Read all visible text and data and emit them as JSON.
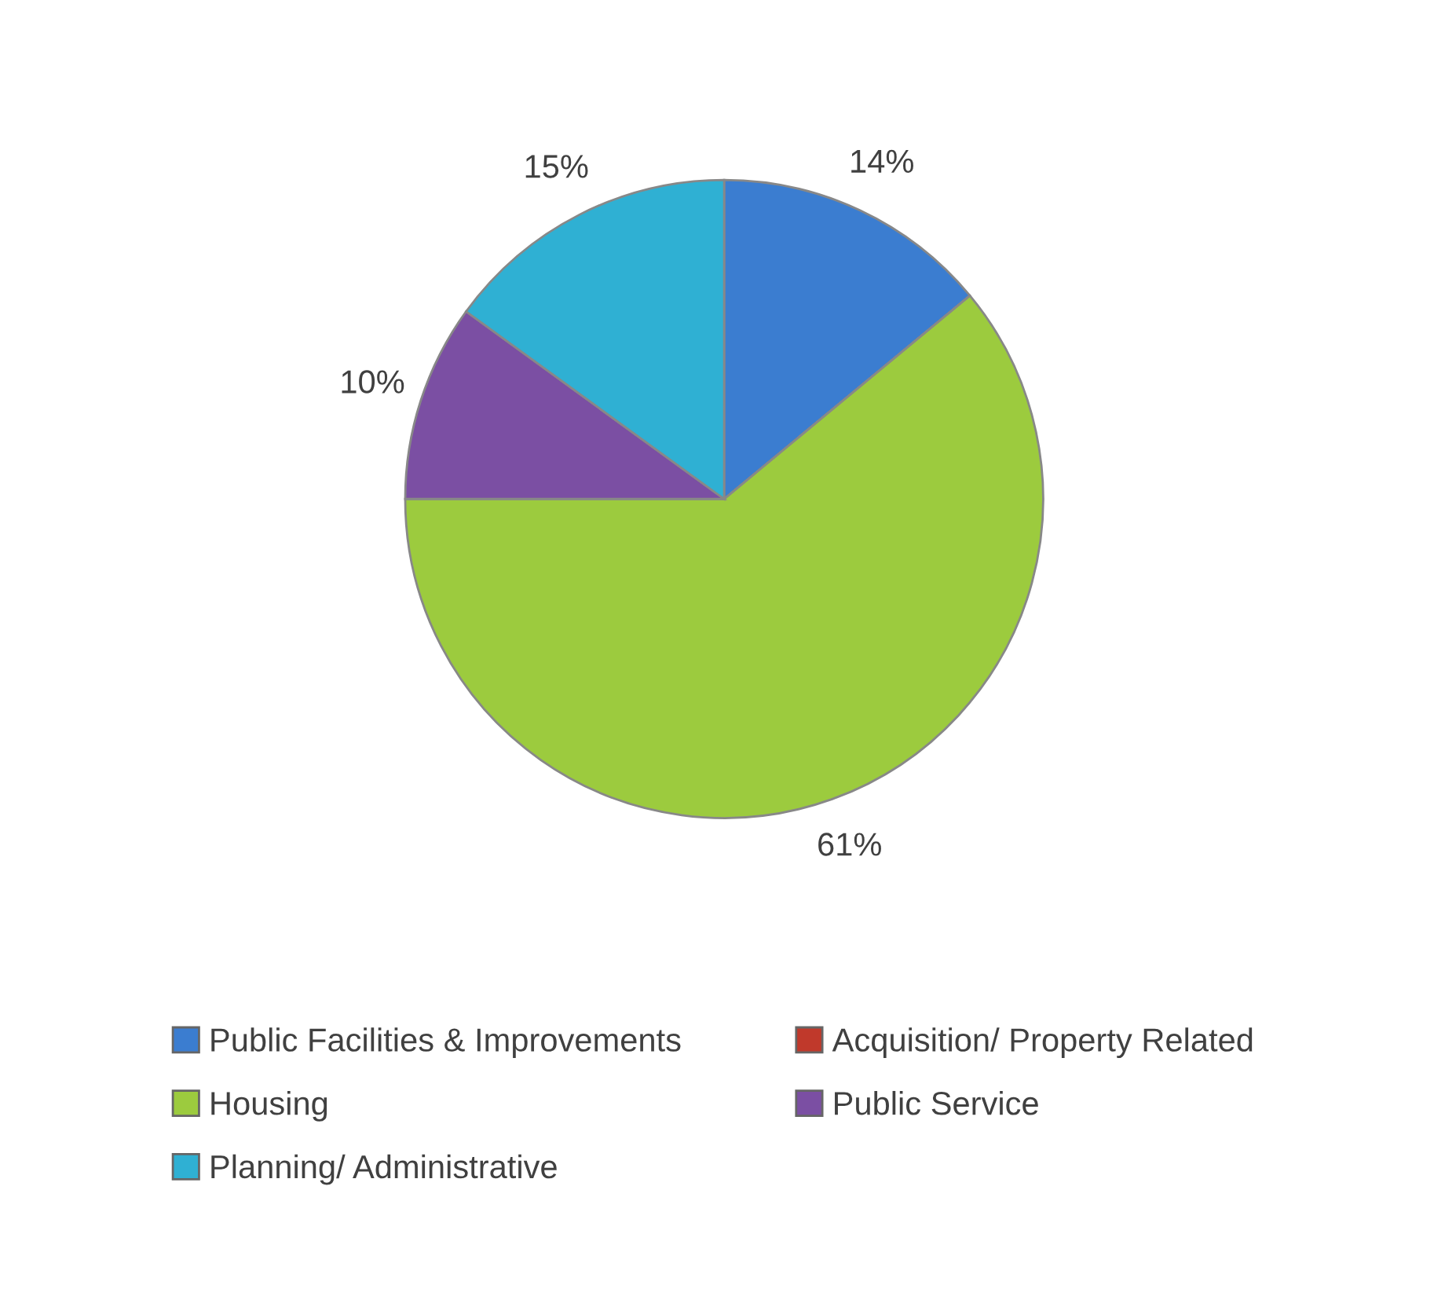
{
  "chart_data": {
    "type": "pie",
    "categories": [
      "Public Facilities & Improvements",
      "Acquisition/ Property Related",
      "Housing",
      "Public Service",
      "Planning/ Administrative"
    ],
    "values": [
      14,
      0,
      61,
      10,
      15
    ],
    "colors": [
      "#3b7dd0",
      "#c0392b",
      "#9ccb3e",
      "#7b4fa3",
      "#2fb0d3"
    ],
    "value_labels": [
      "14%",
      null,
      "61%",
      "10%",
      "15%"
    ],
    "legend": "bottom"
  }
}
